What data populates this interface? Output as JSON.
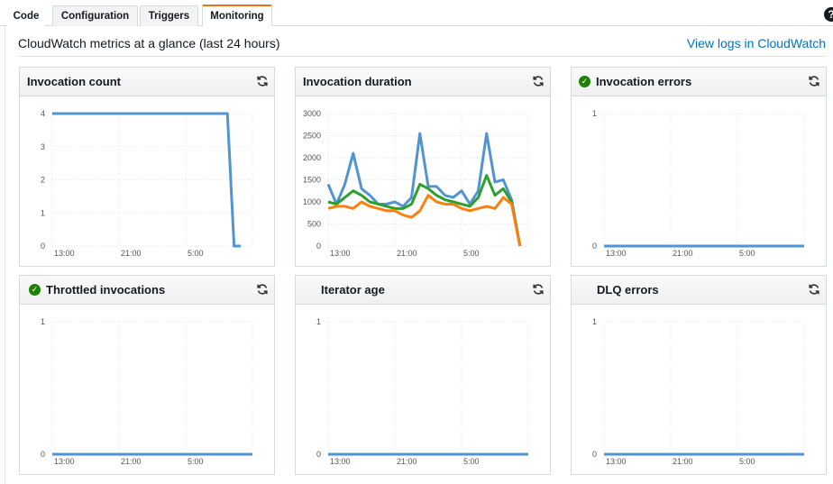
{
  "tabs": [
    {
      "label": "Code",
      "active": false
    },
    {
      "label": "Configuration",
      "active": false
    },
    {
      "label": "Triggers",
      "active": false
    },
    {
      "label": "Monitoring",
      "active": true
    }
  ],
  "help_icon": "?",
  "heading": "CloudWatch metrics at a glance (last 24 hours)",
  "view_logs_link": "View logs in CloudWatch",
  "colors": {
    "blue": "#5294cf",
    "green": "#2ca02c",
    "orange": "#ff7f0e",
    "ok": "#1d8102",
    "tab_accent": "#ec7211",
    "link": "#0073bb"
  },
  "panels": [
    {
      "title": "Invocation count",
      "status_icon": "none"
    },
    {
      "title": "Invocation duration",
      "status_icon": "none"
    },
    {
      "title": "Invocation errors",
      "status_icon": "ok-check"
    },
    {
      "title": "Throttled invocations",
      "status_icon": "ok-check"
    },
    {
      "title": "Iterator age",
      "status_icon": "none"
    },
    {
      "title": "DLQ errors",
      "status_icon": "none"
    }
  ],
  "chart_data": [
    {
      "type": "line",
      "title": "Invocation count",
      "x_ticks": [
        "13:00",
        "21:00",
        "5:00"
      ],
      "y_ticks": [
        "0",
        "1",
        "2",
        "3",
        "4"
      ],
      "ylim": [
        0,
        4
      ],
      "xlim": [
        0,
        24
      ],
      "series": [
        {
          "color": "#5294cf",
          "x": [
            0,
            21,
            21.8,
            22.6
          ],
          "y": [
            4,
            4,
            0,
            0
          ]
        }
      ]
    },
    {
      "type": "line",
      "title": "Invocation duration",
      "x_ticks": [
        "13:00",
        "21:00",
        "5:00"
      ],
      "y_ticks": [
        "0",
        "500",
        "1000",
        "1500",
        "2000",
        "2500",
        "3000"
      ],
      "ylim": [
        0,
        3000
      ],
      "xlim": [
        0,
        24
      ],
      "series": [
        {
          "color": "#5294cf",
          "x": [
            0,
            1,
            2,
            3,
            4,
            5,
            6,
            7,
            8,
            9,
            10,
            11,
            12,
            13,
            14,
            15,
            16,
            17,
            18,
            19,
            20,
            21,
            22,
            23
          ],
          "y": [
            1400,
            950,
            1400,
            2100,
            1300,
            1150,
            950,
            950,
            1000,
            900,
            1100,
            2550,
            1350,
            1350,
            1150,
            1100,
            1250,
            950,
            1250,
            2550,
            1450,
            1500,
            1050,
            0
          ]
        },
        {
          "color": "#2ca02c",
          "x": [
            0,
            1,
            2,
            3,
            4,
            5,
            6,
            7,
            8,
            9,
            10,
            11,
            12,
            13,
            14,
            15,
            16,
            17,
            18,
            19,
            20,
            21,
            22,
            23
          ],
          "y": [
            1000,
            950,
            1100,
            1250,
            1150,
            1000,
            950,
            900,
            850,
            850,
            950,
            1400,
            1300,
            1150,
            1050,
            1000,
            950,
            900,
            1100,
            1600,
            1150,
            1300,
            1000,
            0
          ]
        },
        {
          "color": "#ff7f0e",
          "x": [
            0,
            1,
            2,
            3,
            4,
            5,
            6,
            7,
            8,
            9,
            10,
            11,
            12,
            13,
            14,
            15,
            16,
            17,
            18,
            19,
            20,
            21,
            22,
            23
          ],
          "y": [
            850,
            900,
            900,
            850,
            1000,
            900,
            850,
            800,
            800,
            700,
            650,
            800,
            1150,
            1000,
            950,
            950,
            850,
            800,
            850,
            900,
            850,
            1100,
            950,
            0
          ]
        }
      ]
    },
    {
      "type": "line",
      "title": "Invocation errors",
      "x_ticks": [
        "13:00",
        "21:00",
        "5:00"
      ],
      "y_ticks": [
        "0",
        "1"
      ],
      "ylim": [
        0,
        1
      ],
      "xlim": [
        0,
        24
      ],
      "series": [
        {
          "color": "#5294cf",
          "x": [
            0,
            24
          ],
          "y": [
            0,
            0
          ]
        }
      ]
    },
    {
      "type": "line",
      "title": "Throttled invocations",
      "x_ticks": [
        "13:00",
        "21:00",
        "5:00"
      ],
      "y_ticks": [
        "0",
        "1"
      ],
      "ylim": [
        0,
        1
      ],
      "xlim": [
        0,
        24
      ],
      "series": [
        {
          "color": "#5294cf",
          "x": [
            0,
            24
          ],
          "y": [
            0,
            0
          ]
        }
      ]
    },
    {
      "type": "line",
      "title": "Iterator age",
      "x_ticks": [
        "13:00",
        "21:00",
        "5:00"
      ],
      "y_ticks": [
        "0",
        "1"
      ],
      "ylim": [
        0,
        1
      ],
      "xlim": [
        0,
        24
      ],
      "series": [
        {
          "color": "#5294cf",
          "x": [
            0,
            24
          ],
          "y": [
            0,
            0
          ]
        }
      ]
    },
    {
      "type": "line",
      "title": "DLQ errors",
      "x_ticks": [
        "13:00",
        "21:00",
        "5:00"
      ],
      "y_ticks": [
        "0",
        "1"
      ],
      "ylim": [
        0,
        1
      ],
      "xlim": [
        0,
        24
      ],
      "series": [
        {
          "color": "#5294cf",
          "x": [
            0,
            24
          ],
          "y": [
            0,
            0
          ]
        }
      ]
    }
  ]
}
